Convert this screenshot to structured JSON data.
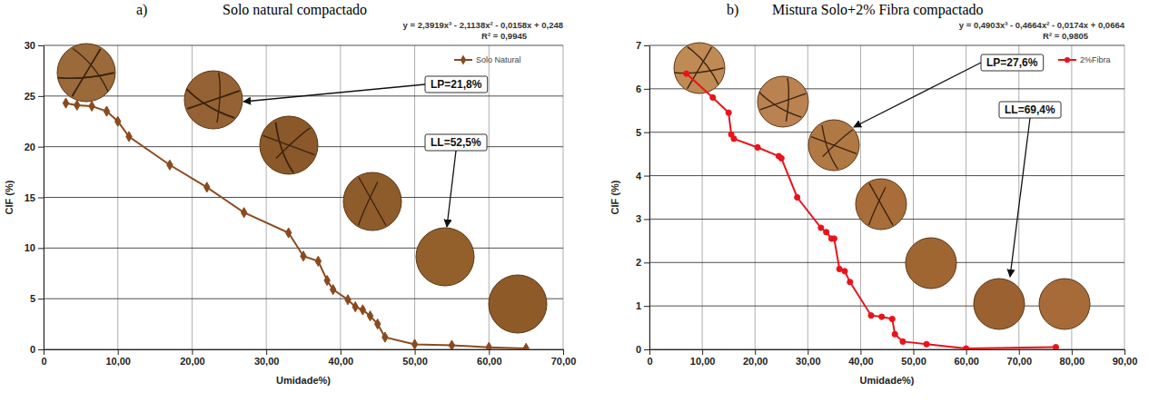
{
  "chart_data": [
    {
      "type": "line",
      "panel": "a)",
      "title": "Solo natural compactado",
      "equation": "y = 2,3919x³ - 2,1138x² - 0,0158x + 0,248",
      "r_squared": "R² = 0,9945",
      "annotations": [
        "LP=21,8%",
        "LL=52,5%"
      ],
      "x_label": "Umidade%)",
      "y_label": "CIF (%)",
      "x": [
        3,
        4.5,
        6.5,
        8.5,
        10,
        11.5,
        17,
        22,
        27,
        33,
        35,
        37,
        38.2,
        39,
        41,
        42,
        43,
        44,
        45,
        46,
        50,
        55,
        60,
        65
      ],
      "series": [
        {
          "name": "Solo Natural",
          "color": "#8b4a1e",
          "marker": "diamond",
          "line_style": "solid",
          "values": [
            24.3,
            24.1,
            24.0,
            23.5,
            22.5,
            21.0,
            18.2,
            16.0,
            13.5,
            11.5,
            9.2,
            8.7,
            6.8,
            5.9,
            4.9,
            4.2,
            3.9,
            3.3,
            2.5,
            1.2,
            0.5,
            0.4,
            0.2,
            0.1
          ]
        }
      ],
      "xlim": [
        0,
        70
      ],
      "xticks": [
        0,
        {
          "value": 10,
          "label": "10,00"
        },
        {
          "value": 20,
          "label": "20,00"
        },
        {
          "value": 30,
          "label": "30,00"
        },
        {
          "value": 40,
          "label": "40,00"
        },
        {
          "value": 50,
          "label": "50,00"
        },
        {
          "value": 60,
          "label": "60,00"
        },
        {
          "value": 70,
          "label": "70,00"
        }
      ],
      "ylim": [
        0,
        30
      ],
      "yticks": [
        0,
        5,
        10,
        15,
        20,
        25,
        30
      ],
      "grid": true,
      "legend": "upper right"
    },
    {
      "type": "line",
      "panel": "b)",
      "title": "Mistura Solo+2% Fibra compactado",
      "equation": "y = 0,4903x³ - 0,4664x² - 0,0174x + 0,0664",
      "r_squared": "R² = 0,9805",
      "annotations": [
        "LP=27,6%",
        "LL=69,4%"
      ],
      "x_label": "Umidade%)",
      "y_label": "CIF (%)",
      "x": [
        7,
        12,
        15,
        15.5,
        16,
        20.5,
        24.5,
        25,
        28,
        32.5,
        33.5,
        34.5,
        35,
        36,
        37,
        38,
        42,
        44,
        46,
        46.5,
        48,
        52.5,
        60,
        77
      ],
      "series": [
        {
          "name": "2%Fibra",
          "color": "#e8141c",
          "marker": "circle",
          "line_style": "solid",
          "values": [
            6.35,
            5.8,
            5.45,
            4.95,
            4.85,
            4.65,
            4.45,
            4.4,
            3.5,
            2.8,
            2.7,
            2.55,
            2.55,
            1.85,
            1.8,
            1.55,
            0.78,
            0.75,
            0.7,
            0.35,
            0.18,
            0.12,
            0.02,
            0.05
          ]
        }
      ],
      "xlim": [
        0,
        90
      ],
      "xticks": [
        0,
        {
          "value": 10,
          "label": "10,00"
        },
        {
          "value": 20,
          "label": "20,00"
        },
        {
          "value": 30,
          "label": "30,00"
        },
        {
          "value": 40,
          "label": "40,00"
        },
        {
          "value": 50,
          "label": "50,00"
        },
        {
          "value": 60,
          "label": "60,00"
        },
        {
          "value": 70,
          "label": "70,00"
        },
        {
          "value": 80,
          "label": "80,00"
        },
        {
          "value": 90,
          "label": "90,00"
        }
      ],
      "ylim": [
        0,
        7
      ],
      "yticks": [
        0,
        1,
        2,
        3,
        4,
        5,
        6,
        7
      ],
      "grid": true,
      "legend": "upper right"
    }
  ]
}
